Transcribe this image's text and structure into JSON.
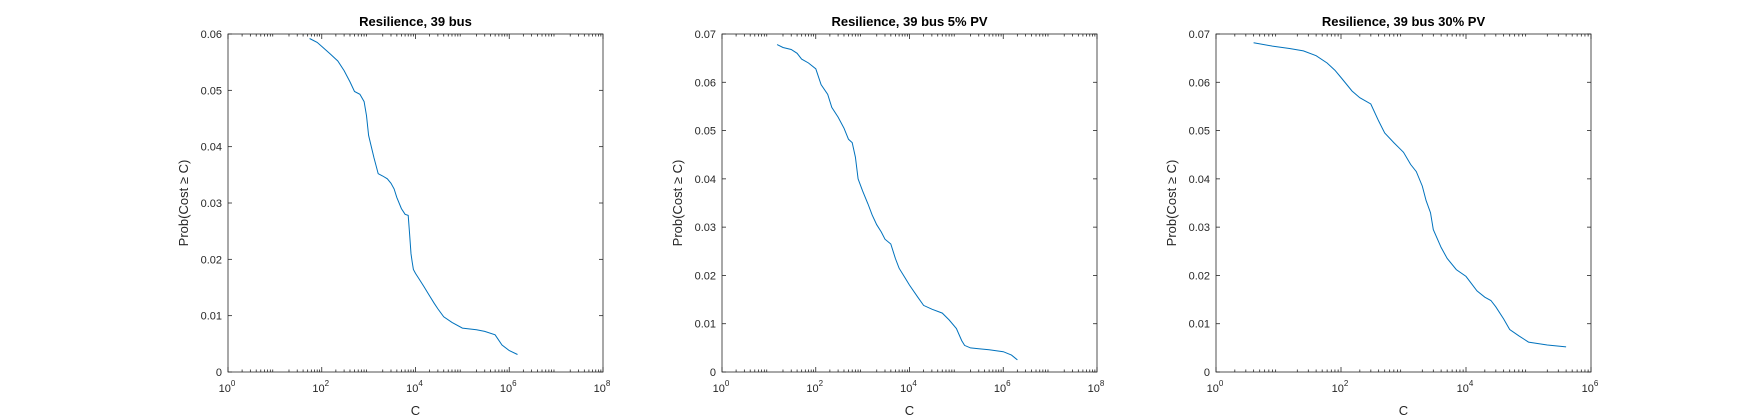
{
  "chart_data": [
    {
      "type": "line",
      "title": "Resilience, 39 bus",
      "xlabel": "C",
      "ylabel": "Prob(Cost ≥ C)",
      "xscale": "log",
      "xlim": [
        1,
        100000000
      ],
      "ylim": [
        0,
        0.06
      ],
      "xticks": [
        1,
        100,
        10000,
        1000000,
        100000000
      ],
      "xtick_exponents": [
        "0",
        "2",
        "4",
        "6",
        "8"
      ],
      "yticks": [
        "0",
        "0.01",
        "0.02",
        "0.03",
        "0.04",
        "0.05",
        "0.06"
      ],
      "grid": false,
      "series": [
        {
          "color": "#0072bd",
          "x": [
            55,
            80,
            110,
            150,
            220,
            300,
            400,
            500,
            650,
            800,
            900,
            1000,
            1100,
            1300,
            1600,
            2000,
            2500,
            3000,
            3500,
            4000,
            5000,
            6000,
            7000,
            7500,
            8000,
            8500,
            9000,
            10000,
            12000,
            15000,
            20000,
            25000,
            30000,
            40000,
            60000,
            100000,
            200000,
            300000,
            500000,
            700000,
            1000000,
            1500000
          ],
          "y": [
            0.0592,
            0.0585,
            0.0575,
            0.0565,
            0.0552,
            0.0535,
            0.0515,
            0.0498,
            0.0493,
            0.048,
            0.0455,
            0.042,
            0.0405,
            0.038,
            0.0352,
            0.0348,
            0.0343,
            0.0335,
            0.0325,
            0.031,
            0.029,
            0.028,
            0.0278,
            0.0245,
            0.021,
            0.0195,
            0.0182,
            0.0175,
            0.0165,
            0.0152,
            0.0135,
            0.0122,
            0.0112,
            0.0098,
            0.0088,
            0.0078,
            0.0075,
            0.0072,
            0.0066,
            0.0048,
            0.0038,
            0.0031
          ]
        }
      ]
    },
    {
      "type": "line",
      "title": "Resilience, 39 bus 5% PV",
      "xlabel": "C",
      "ylabel": "Prob(Cost ≥ C)",
      "xscale": "log",
      "xlim": [
        1,
        100000000
      ],
      "ylim": [
        0,
        0.07
      ],
      "xticks": [
        1,
        100,
        10000,
        1000000,
        100000000
      ],
      "xtick_exponents": [
        "0",
        "2",
        "4",
        "6",
        "8"
      ],
      "yticks": [
        "0",
        "0.01",
        "0.02",
        "0.03",
        "0.04",
        "0.05",
        "0.06",
        "0.07"
      ],
      "grid": false,
      "series": [
        {
          "color": "#0072bd",
          "x": [
            15,
            20,
            30,
            40,
            50,
            70,
            100,
            130,
            180,
            220,
            300,
            400,
            500,
            600,
            700,
            800,
            1000,
            1300,
            1600,
            2000,
            2500,
            3000,
            4000,
            5000,
            6000,
            8000,
            10000,
            15000,
            20000,
            30000,
            50000,
            70000,
            100000,
            130000,
            150000,
            200000,
            300000,
            500000,
            1000000,
            1500000,
            2000000
          ],
          "y": [
            0.0678,
            0.0672,
            0.0668,
            0.066,
            0.0648,
            0.064,
            0.0628,
            0.0595,
            0.0575,
            0.0548,
            0.0528,
            0.0505,
            0.0482,
            0.0475,
            0.0445,
            0.04,
            0.0375,
            0.0348,
            0.0325,
            0.0305,
            0.029,
            0.0275,
            0.0265,
            0.0235,
            0.0215,
            0.0195,
            0.018,
            0.0155,
            0.0138,
            0.013,
            0.0122,
            0.0108,
            0.009,
            0.0065,
            0.0055,
            0.005,
            0.0048,
            0.0046,
            0.0042,
            0.0035,
            0.0025
          ]
        }
      ]
    },
    {
      "type": "line",
      "title": "Resilience, 39 bus 30% PV",
      "xlabel": "C",
      "ylabel": "Prob(Cost ≥ C)",
      "xscale": "log",
      "xlim": [
        1,
        1000000
      ],
      "ylim": [
        0,
        0.07
      ],
      "xticks": [
        1,
        100,
        10000,
        1000000
      ],
      "xtick_exponents": [
        "0",
        "2",
        "4",
        "6"
      ],
      "yticks": [
        "0",
        "0.01",
        "0.02",
        "0.03",
        "0.04",
        "0.05",
        "0.06",
        "0.07"
      ],
      "grid": false,
      "series": [
        {
          "color": "#0072bd",
          "x": [
            4,
            8,
            15,
            25,
            40,
            60,
            80,
            100,
            150,
            200,
            300,
            400,
            500,
            700,
            1000,
            1300,
            1600,
            2000,
            2300,
            2700,
            3000,
            3500,
            4000,
            5000,
            7000,
            10000,
            15000,
            20000,
            25000,
            30000,
            40000,
            50000,
            70000,
            100000,
            200000,
            400000
          ],
          "y": [
            0.0682,
            0.0675,
            0.067,
            0.0665,
            0.0655,
            0.064,
            0.0625,
            0.061,
            0.0582,
            0.0568,
            0.0555,
            0.052,
            0.0495,
            0.0475,
            0.0455,
            0.043,
            0.0415,
            0.0385,
            0.0355,
            0.033,
            0.0295,
            0.0275,
            0.0258,
            0.0235,
            0.0212,
            0.0198,
            0.0168,
            0.0155,
            0.0148,
            0.0135,
            0.011,
            0.0088,
            0.0075,
            0.0062,
            0.0056,
            0.0052
          ]
        }
      ]
    }
  ]
}
